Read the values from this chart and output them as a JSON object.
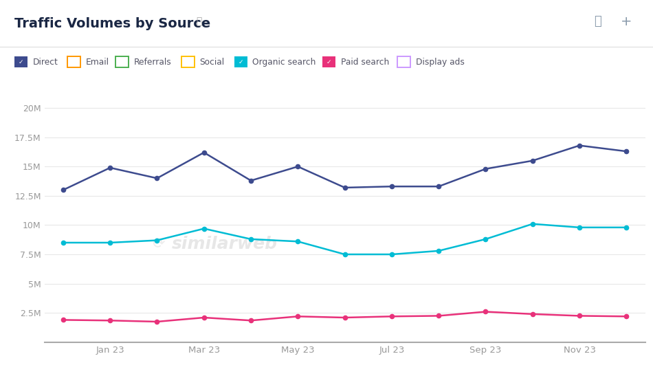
{
  "title": "Traffic Volumes by Source",
  "background_color": "#ffffff",
  "x_ticks_labels": [
    "Jan 23",
    "Mar 23",
    "May 23",
    "Jul 23",
    "Sep 23",
    "Nov 23"
  ],
  "x_ticks_positions": [
    1,
    3,
    5,
    7,
    9,
    11
  ],
  "series": [
    {
      "name": "Direct",
      "color": "#3d4b8e",
      "values": [
        13.0,
        14.9,
        14.0,
        16.2,
        13.8,
        15.0,
        13.2,
        13.3,
        13.3,
        14.8,
        15.5,
        16.8,
        16.3
      ]
    },
    {
      "name": "Organic search",
      "color": "#00bcd4",
      "values": [
        8.5,
        8.5,
        8.7,
        9.7,
        8.8,
        8.6,
        7.5,
        7.5,
        7.8,
        8.8,
        10.1,
        9.8,
        9.8
      ]
    },
    {
      "name": "Paid search",
      "color": "#e8317a",
      "values": [
        1.9,
        1.85,
        1.75,
        2.1,
        1.85,
        2.2,
        2.1,
        2.2,
        2.25,
        2.6,
        2.4,
        2.25,
        2.2
      ]
    }
  ],
  "legend_items": [
    {
      "label": "Direct",
      "color": "#3d4b8e",
      "checked": true
    },
    {
      "label": "Email",
      "color": "#ff9800",
      "checked": false
    },
    {
      "label": "Referrals",
      "color": "#4caf50",
      "checked": false
    },
    {
      "label": "Social",
      "color": "#ffc107",
      "checked": false
    },
    {
      "label": "Organic search",
      "color": "#00bcd4",
      "checked": true
    },
    {
      "label": "Paid search",
      "color": "#e8317a",
      "checked": true
    },
    {
      "label": "Display ads",
      "color": "#cc99ff",
      "checked": false
    }
  ],
  "yticks": [
    0,
    2.5,
    5.0,
    7.5,
    10.0,
    12.5,
    15.0,
    17.5,
    20.0
  ],
  "ytick_labels": [
    "",
    "2.5M",
    "5M",
    "7.5M",
    "10M",
    "12.5M",
    "15M",
    "17.5M",
    "20M"
  ],
  "ylim": [
    0,
    22.0
  ],
  "n_points": 13
}
